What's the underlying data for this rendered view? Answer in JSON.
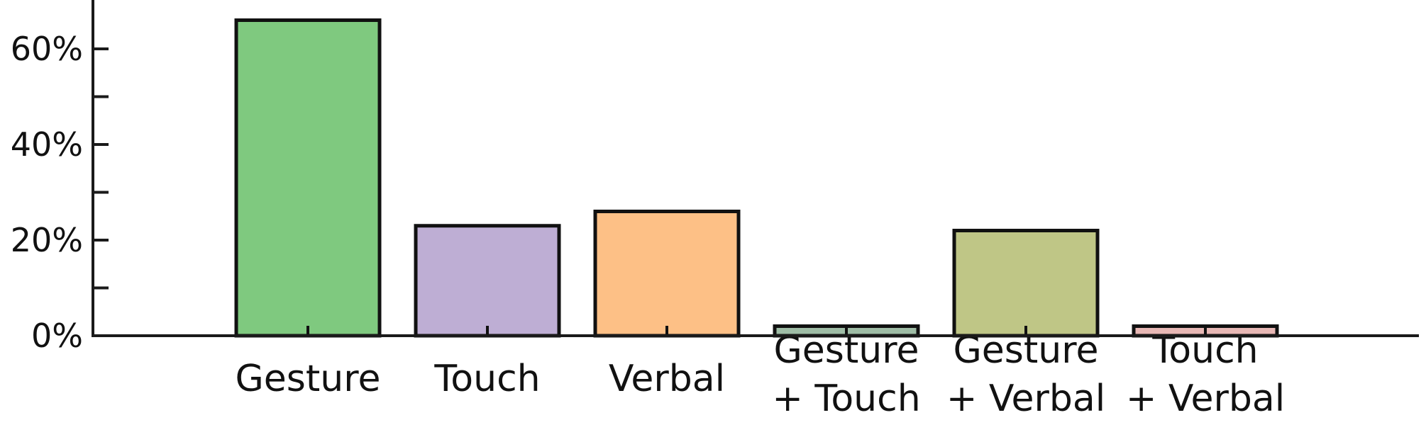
{
  "chart_data": {
    "type": "bar",
    "categories": [
      [
        "Gesture"
      ],
      [
        "Touch"
      ],
      [
        "Verbal"
      ],
      [
        "Gesture",
        "+ Touch"
      ],
      [
        "Gesture",
        "+ Verbal"
      ],
      [
        "Touch",
        "+ Verbal"
      ]
    ],
    "values": [
      66,
      23,
      26,
      2,
      22,
      2
    ],
    "colors": [
      "#7fc97f",
      "#beaed4",
      "#fdc086",
      "#9fbda6",
      "#bfc686",
      "#e8b8b5"
    ],
    "ylim": [
      0,
      70
    ],
    "yticks_major": [
      0,
      20,
      40,
      60
    ],
    "yticks_minor": [
      10,
      30,
      50
    ],
    "ytick_labels": [
      "0%",
      "20%",
      "40%",
      "60%"
    ],
    "title": "",
    "xlabel": "",
    "ylabel": "",
    "grid": false
  }
}
